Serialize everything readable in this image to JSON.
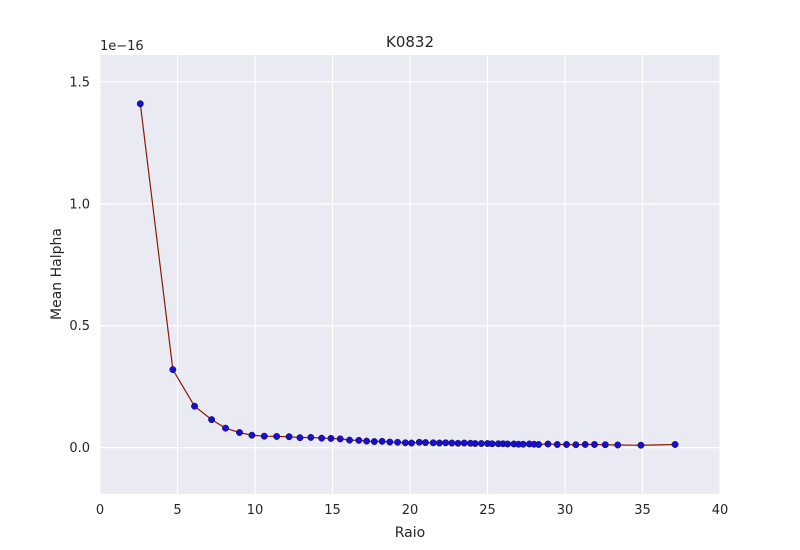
{
  "chart_data": {
    "type": "line",
    "title": "K0832",
    "xlabel": "Raio",
    "ylabel": "Mean Halpha",
    "y_offset_text": "1e−16",
    "xlim": [
      0,
      40
    ],
    "ylim": [
      -0.19,
      1.61
    ],
    "xticks": [
      0,
      5,
      10,
      15,
      20,
      25,
      30,
      35,
      40
    ],
    "xtick_labels": [
      "0",
      "5",
      "10",
      "15",
      "20",
      "25",
      "30",
      "35",
      "40"
    ],
    "yticks": [
      0.0,
      0.5,
      1.0,
      1.5
    ],
    "ytick_labels": [
      "0.0",
      "0.5",
      "1.0",
      "1.5"
    ],
    "grid": true,
    "line_color": "#8b1a00",
    "marker_color": "#1a0fc8",
    "background_color": "#eaeaf2",
    "series": [
      {
        "x": [
          2.6,
          4.7,
          6.1,
          7.2,
          8.1,
          9.0,
          9.8,
          10.6,
          11.4,
          12.2,
          12.9,
          13.6,
          14.3,
          14.9,
          15.5,
          16.1,
          16.7,
          17.2,
          17.7,
          18.2,
          18.7,
          19.2,
          19.7,
          20.1,
          20.6,
          21.0,
          21.5,
          21.9,
          22.3,
          22.7,
          23.1,
          23.5,
          23.9,
          24.2,
          24.6,
          25.0,
          25.3,
          25.7,
          26.0,
          26.3,
          26.7,
          27.0,
          27.3,
          27.7,
          28.0,
          28.3,
          28.9,
          29.5,
          30.1,
          30.7,
          31.3,
          31.9,
          32.6,
          33.4,
          34.9,
          37.1
        ],
        "y": [
          1.41,
          0.32,
          0.17,
          0.115,
          0.08,
          0.062,
          0.051,
          0.047,
          0.046,
          0.045,
          0.041,
          0.042,
          0.039,
          0.038,
          0.036,
          0.031,
          0.03,
          0.027,
          0.025,
          0.026,
          0.023,
          0.022,
          0.02,
          0.019,
          0.022,
          0.021,
          0.02,
          0.019,
          0.02,
          0.019,
          0.018,
          0.019,
          0.018,
          0.017,
          0.017,
          0.017,
          0.016,
          0.016,
          0.016,
          0.015,
          0.015,
          0.014,
          0.014,
          0.015,
          0.014,
          0.013,
          0.015,
          0.013,
          0.013,
          0.012,
          0.013,
          0.013,
          0.012,
          0.011,
          0.01,
          0.013
        ]
      }
    ]
  }
}
